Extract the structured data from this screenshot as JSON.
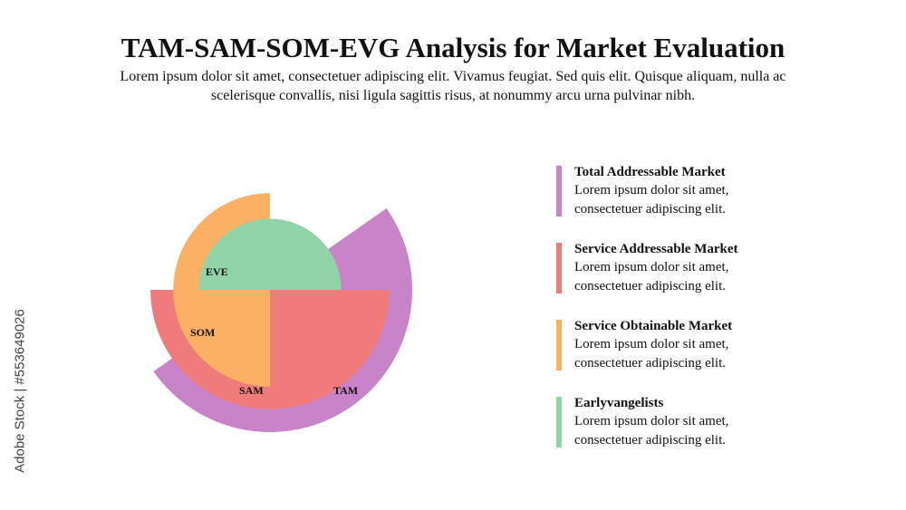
{
  "header": {
    "title": "TAM-SAM-SOM-EVG Analysis for Market Evaluation",
    "subtitle": "Lorem ipsum dolor sit amet, consectetuer adipiscing elit. Vivamus feugiat. Sed quis elit. Quisque aliquam, nulla ac scelerisque convallis, nisi ligula sagittis risus, at nonummy arcu urna pulvinar nibh."
  },
  "diagram": {
    "segments": [
      {
        "key": "tam",
        "label": "TAM",
        "color": "#c984c9",
        "radius_ratio": 1.0,
        "start_deg": -35,
        "end_deg": 145
      },
      {
        "key": "sam",
        "label": "SAM",
        "color": "#f07b7b",
        "radius_ratio": 0.84,
        "start_deg": 0,
        "end_deg": 180
      },
      {
        "key": "som",
        "label": "SOM",
        "color": "#fbb064",
        "radius_ratio": 0.68,
        "start_deg": 90,
        "end_deg": 270
      },
      {
        "key": "eve",
        "label": "EVE",
        "color": "#8fd3a6",
        "radius_ratio": 0.5,
        "start_deg": 180,
        "end_deg": 360
      }
    ]
  },
  "legend": [
    {
      "title": "Total Addressable Market",
      "desc_line1": "Lorem ipsum dolor sit amet,",
      "desc_line2": "consectetuer adipiscing elit.",
      "color": "#c984c9"
    },
    {
      "title": "Service Addressable Market",
      "desc_line1": "Lorem ipsum dolor sit amet,",
      "desc_line2": "consectetuer adipiscing elit.",
      "color": "#f07b7b"
    },
    {
      "title": "Service Obtainable Market",
      "desc_line1": "Lorem ipsum dolor sit amet,",
      "desc_line2": "consectetuer adipiscing elit.",
      "color": "#fbb064"
    },
    {
      "title": "Earlyvangelists",
      "desc_line1": "Lorem ipsum dolor sit amet,",
      "desc_line2": "consectetuer adipiscing elit.",
      "color": "#8fd3a6"
    }
  ],
  "watermark": {
    "text": "Adobe Stock | #553649026"
  }
}
